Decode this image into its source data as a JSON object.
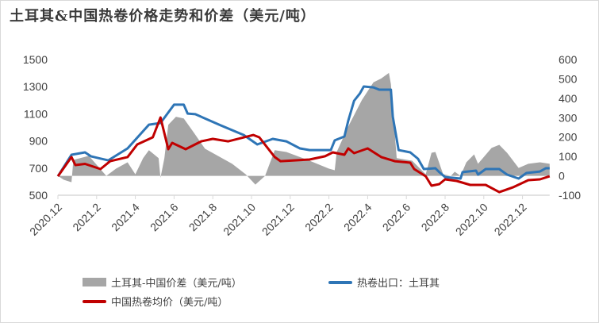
{
  "chart_data": {
    "type": "line",
    "title": "土耳其&中国热卷价格走势和价差（美元/吨）",
    "xlim": [
      "2020-12-01",
      "2023-01-13"
    ],
    "x_tick_labels": [
      "2020.12",
      "2021.2",
      "2021.4",
      "2021.6",
      "2021.8",
      "2021.10",
      "2021.12",
      "2022.2",
      "2022.4",
      "2022.6",
      "2022.8",
      "2022.10",
      "2022.12"
    ],
    "x_tick_dates": [
      "2020-12-01",
      "2021-02-01",
      "2021-04-01",
      "2021-06-01",
      "2021-08-01",
      "2021-10-01",
      "2021-12-01",
      "2022-02-01",
      "2022-04-01",
      "2022-06-01",
      "2022-08-01",
      "2022-10-01",
      "2022-12-01"
    ],
    "y_left": {
      "range": [
        500,
        1500
      ],
      "ticks": [
        500,
        700,
        900,
        1100,
        1300,
        1500
      ]
    },
    "y_right": {
      "range": [
        -100,
        600
      ],
      "ticks": [
        -100,
        0,
        100,
        200,
        300,
        400,
        500,
        600
      ]
    },
    "grid": false,
    "legend_position": "bottom",
    "series": [
      {
        "name": "土耳其-中国价差（美元/吨）",
        "type": "area",
        "axis": "right",
        "color": "#a6a6a6",
        "points": [
          [
            "2020-12-01",
            0
          ],
          [
            "2020-12-10",
            -20
          ],
          [
            "2020-12-22",
            -33
          ],
          [
            "2020-12-25",
            82
          ],
          [
            "2021-01-19",
            103
          ],
          [
            "2021-02-16",
            0
          ],
          [
            "2021-03-01",
            37
          ],
          [
            "2021-03-19",
            70
          ],
          [
            "2021-04-01",
            8
          ],
          [
            "2021-04-13",
            91
          ],
          [
            "2021-04-22",
            132
          ],
          [
            "2021-05-07",
            91
          ],
          [
            "2021-05-10",
            -10
          ],
          [
            "2021-05-16",
            91
          ],
          [
            "2021-05-22",
            263
          ],
          [
            "2021-06-04",
            305
          ],
          [
            "2021-06-16",
            296
          ],
          [
            "2021-07-01",
            226
          ],
          [
            "2021-07-19",
            140
          ],
          [
            "2021-09-01",
            62
          ],
          [
            "2021-09-22",
            8
          ],
          [
            "2021-10-07",
            -45
          ],
          [
            "2021-10-22",
            0
          ],
          [
            "2021-11-07",
            132
          ],
          [
            "2021-11-25",
            123
          ],
          [
            "2022-01-01",
            78
          ],
          [
            "2022-02-01",
            37
          ],
          [
            "2022-02-10",
            29
          ],
          [
            "2022-02-13",
            123
          ],
          [
            "2022-03-01",
            255
          ],
          [
            "2022-03-22",
            391
          ],
          [
            "2022-04-10",
            482
          ],
          [
            "2022-04-22",
            502
          ],
          [
            "2022-05-04",
            531
          ],
          [
            "2022-05-07",
            473
          ],
          [
            "2022-05-16",
            91
          ],
          [
            "2022-06-10",
            78
          ],
          [
            "2022-07-01",
            8
          ],
          [
            "2022-07-10",
            119
          ],
          [
            "2022-07-16",
            123
          ],
          [
            "2022-07-28",
            8
          ],
          [
            "2022-08-10",
            0
          ],
          [
            "2022-08-16",
            21
          ],
          [
            "2022-08-25",
            0
          ],
          [
            "2022-09-04",
            70
          ],
          [
            "2022-09-16",
            111
          ],
          [
            "2022-09-22",
            62
          ],
          [
            "2022-10-13",
            144
          ],
          [
            "2022-10-25",
            160
          ],
          [
            "2022-11-07",
            119
          ],
          [
            "2022-11-25",
            41
          ],
          [
            "2022-12-10",
            62
          ],
          [
            "2022-12-28",
            70
          ],
          [
            "2023-01-13",
            62
          ]
        ]
      },
      {
        "name": "热卷出口：土耳其",
        "type": "line",
        "axis": "left",
        "color": "#2e75b6",
        "points": [
          [
            "2020-12-01",
            640
          ],
          [
            "2020-12-22",
            798
          ],
          [
            "2021-01-13",
            816
          ],
          [
            "2021-01-22",
            787
          ],
          [
            "2021-02-19",
            757
          ],
          [
            "2021-03-19",
            845
          ],
          [
            "2021-04-22",
            1020
          ],
          [
            "2021-05-10",
            1032
          ],
          [
            "2021-06-01",
            1167
          ],
          [
            "2021-06-16",
            1167
          ],
          [
            "2021-06-22",
            1102
          ],
          [
            "2021-07-04",
            1097
          ],
          [
            "2021-08-13",
            1015
          ],
          [
            "2021-09-19",
            944
          ],
          [
            "2021-10-10",
            874
          ],
          [
            "2021-11-04",
            915
          ],
          [
            "2021-11-25",
            897
          ],
          [
            "2021-12-16",
            845
          ],
          [
            "2022-01-01",
            833
          ],
          [
            "2022-02-04",
            833
          ],
          [
            "2022-02-10",
            904
          ],
          [
            "2022-02-25",
            933
          ],
          [
            "2022-03-01",
            1050
          ],
          [
            "2022-03-10",
            1196
          ],
          [
            "2022-03-19",
            1250
          ],
          [
            "2022-03-25",
            1301
          ],
          [
            "2022-04-10",
            1295
          ],
          [
            "2022-04-19",
            1278
          ],
          [
            "2022-05-07",
            1278
          ],
          [
            "2022-05-10",
            1079
          ],
          [
            "2022-05-19",
            833
          ],
          [
            "2022-06-07",
            816
          ],
          [
            "2022-06-19",
            769
          ],
          [
            "2022-06-28",
            693
          ],
          [
            "2022-07-16",
            699
          ],
          [
            "2022-07-22",
            670
          ],
          [
            "2022-08-01",
            634
          ],
          [
            "2022-08-25",
            623
          ],
          [
            "2022-08-28",
            670
          ],
          [
            "2022-09-19",
            681
          ],
          [
            "2022-09-22",
            652
          ],
          [
            "2022-10-04",
            693
          ],
          [
            "2022-10-25",
            693
          ],
          [
            "2022-11-07",
            652
          ],
          [
            "2022-11-25",
            623
          ],
          [
            "2022-12-07",
            664
          ],
          [
            "2022-12-28",
            675
          ],
          [
            "2023-01-07",
            699
          ],
          [
            "2023-01-13",
            699
          ]
        ]
      },
      {
        "name": "中国热卷均价（美元/吨）",
        "type": "line",
        "axis": "left",
        "color": "#c00000",
        "points": [
          [
            "2020-12-01",
            640
          ],
          [
            "2020-12-22",
            781
          ],
          [
            "2020-12-28",
            722
          ],
          [
            "2021-01-13",
            731
          ],
          [
            "2021-02-07",
            693
          ],
          [
            "2021-02-22",
            751
          ],
          [
            "2021-03-19",
            781
          ],
          [
            "2021-04-04",
            874
          ],
          [
            "2021-04-28",
            927
          ],
          [
            "2021-05-10",
            1073
          ],
          [
            "2021-05-22",
            839
          ],
          [
            "2021-05-28",
            886
          ],
          [
            "2021-06-19",
            839
          ],
          [
            "2021-07-13",
            897
          ],
          [
            "2021-08-01",
            915
          ],
          [
            "2021-08-25",
            897
          ],
          [
            "2021-10-04",
            944
          ],
          [
            "2021-10-13",
            927
          ],
          [
            "2021-11-07",
            781
          ],
          [
            "2021-11-16",
            751
          ],
          [
            "2022-01-01",
            763
          ],
          [
            "2022-01-25",
            787
          ],
          [
            "2022-02-07",
            816
          ],
          [
            "2022-02-25",
            798
          ],
          [
            "2022-03-01",
            845
          ],
          [
            "2022-03-10",
            810
          ],
          [
            "2022-04-01",
            845
          ],
          [
            "2022-04-22",
            781
          ],
          [
            "2022-05-13",
            751
          ],
          [
            "2022-06-07",
            740
          ],
          [
            "2022-06-13",
            693
          ],
          [
            "2022-07-01",
            640
          ],
          [
            "2022-07-10",
            570
          ],
          [
            "2022-07-22",
            582
          ],
          [
            "2022-08-01",
            617
          ],
          [
            "2022-08-19",
            605
          ],
          [
            "2022-09-10",
            576
          ],
          [
            "2022-10-04",
            576
          ],
          [
            "2022-10-25",
            523
          ],
          [
            "2022-11-16",
            558
          ],
          [
            "2022-12-10",
            611
          ],
          [
            "2022-12-28",
            617
          ],
          [
            "2023-01-13",
            640
          ]
        ]
      }
    ]
  }
}
